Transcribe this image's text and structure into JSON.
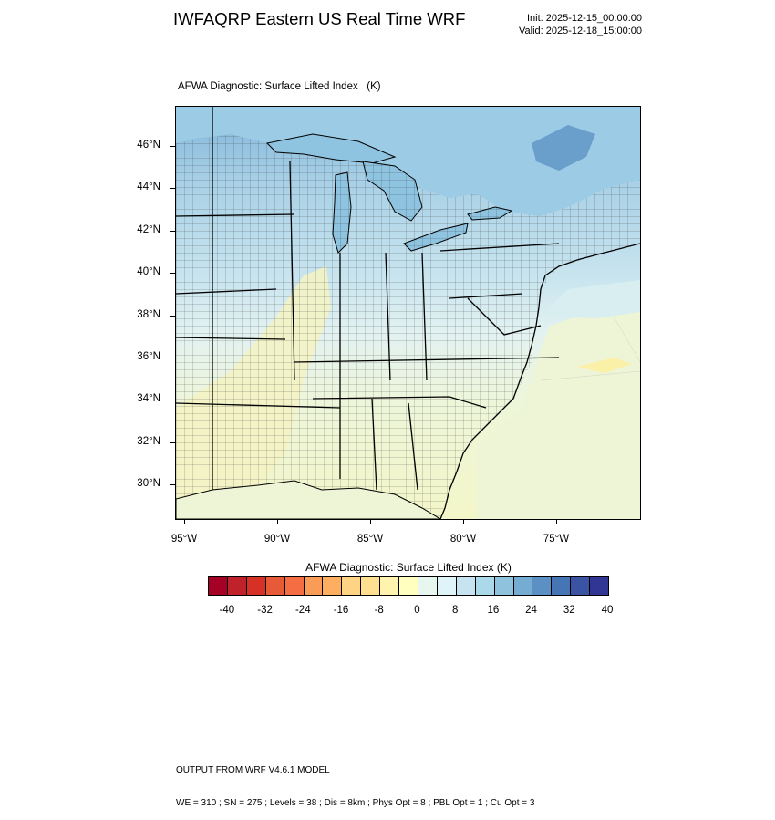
{
  "header": {
    "title": "IWFAQRP Eastern US Real Time WRF",
    "init": "Init: 2025-12-15_00:00:00",
    "valid": "Valid: 2025-12-18_15:00:00"
  },
  "map": {
    "subtitle": "AFWA Diagnostic: Surface Lifted Index   (K)",
    "lat_labels": [
      "46°N",
      "44°N",
      "42°N",
      "40°N",
      "38°N",
      "36°N",
      "34°N",
      "32°N",
      "30°N"
    ],
    "lon_labels": [
      "95°W",
      "90°W",
      "85°W",
      "80°W",
      "75°W"
    ],
    "colors": {
      "ocean_south": "#eef5d6",
      "land_south": "#f4f6c8",
      "land_mid": "#e6f3f3",
      "land_north": "#b3d5e8",
      "land_far_north": "#8ebedd",
      "canada": "#9ccbe5",
      "deep_blue": "#6a9fcc",
      "yellow_patch": "#fbf3b0",
      "lakes": "#8ec4df",
      "state_lines": "#000000",
      "county_lines": "#1a1a1a"
    }
  },
  "colorbar": {
    "title": "AFWA Diagnostic: Surface Lifted Index  (K)",
    "tick_labels": [
      "-40",
      "-32",
      "-24",
      "-16",
      "-8",
      "0",
      "8",
      "16",
      "24",
      "32",
      "40"
    ],
    "colors": [
      "#a50026",
      "#c0222b",
      "#d73027",
      "#e75a37",
      "#f46d43",
      "#f99c58",
      "#fdae61",
      "#fed384",
      "#fee090",
      "#fff3ad",
      "#ffffbf",
      "#e8f6f0",
      "#e0f3f8",
      "#c6e4ef",
      "#abd9e9",
      "#8fc3dd",
      "#74add1",
      "#5c8fc3",
      "#4575b4",
      "#3a53a3",
      "#313695"
    ]
  },
  "footer": {
    "line1": "OUTPUT FROM WRF V4.6.1 MODEL",
    "line2": "WE = 310 ; SN = 275 ; Levels = 38 ; Dis = 8km ; Phys Opt = 8 ; PBL Opt = 1 ; Cu Opt = 3"
  }
}
